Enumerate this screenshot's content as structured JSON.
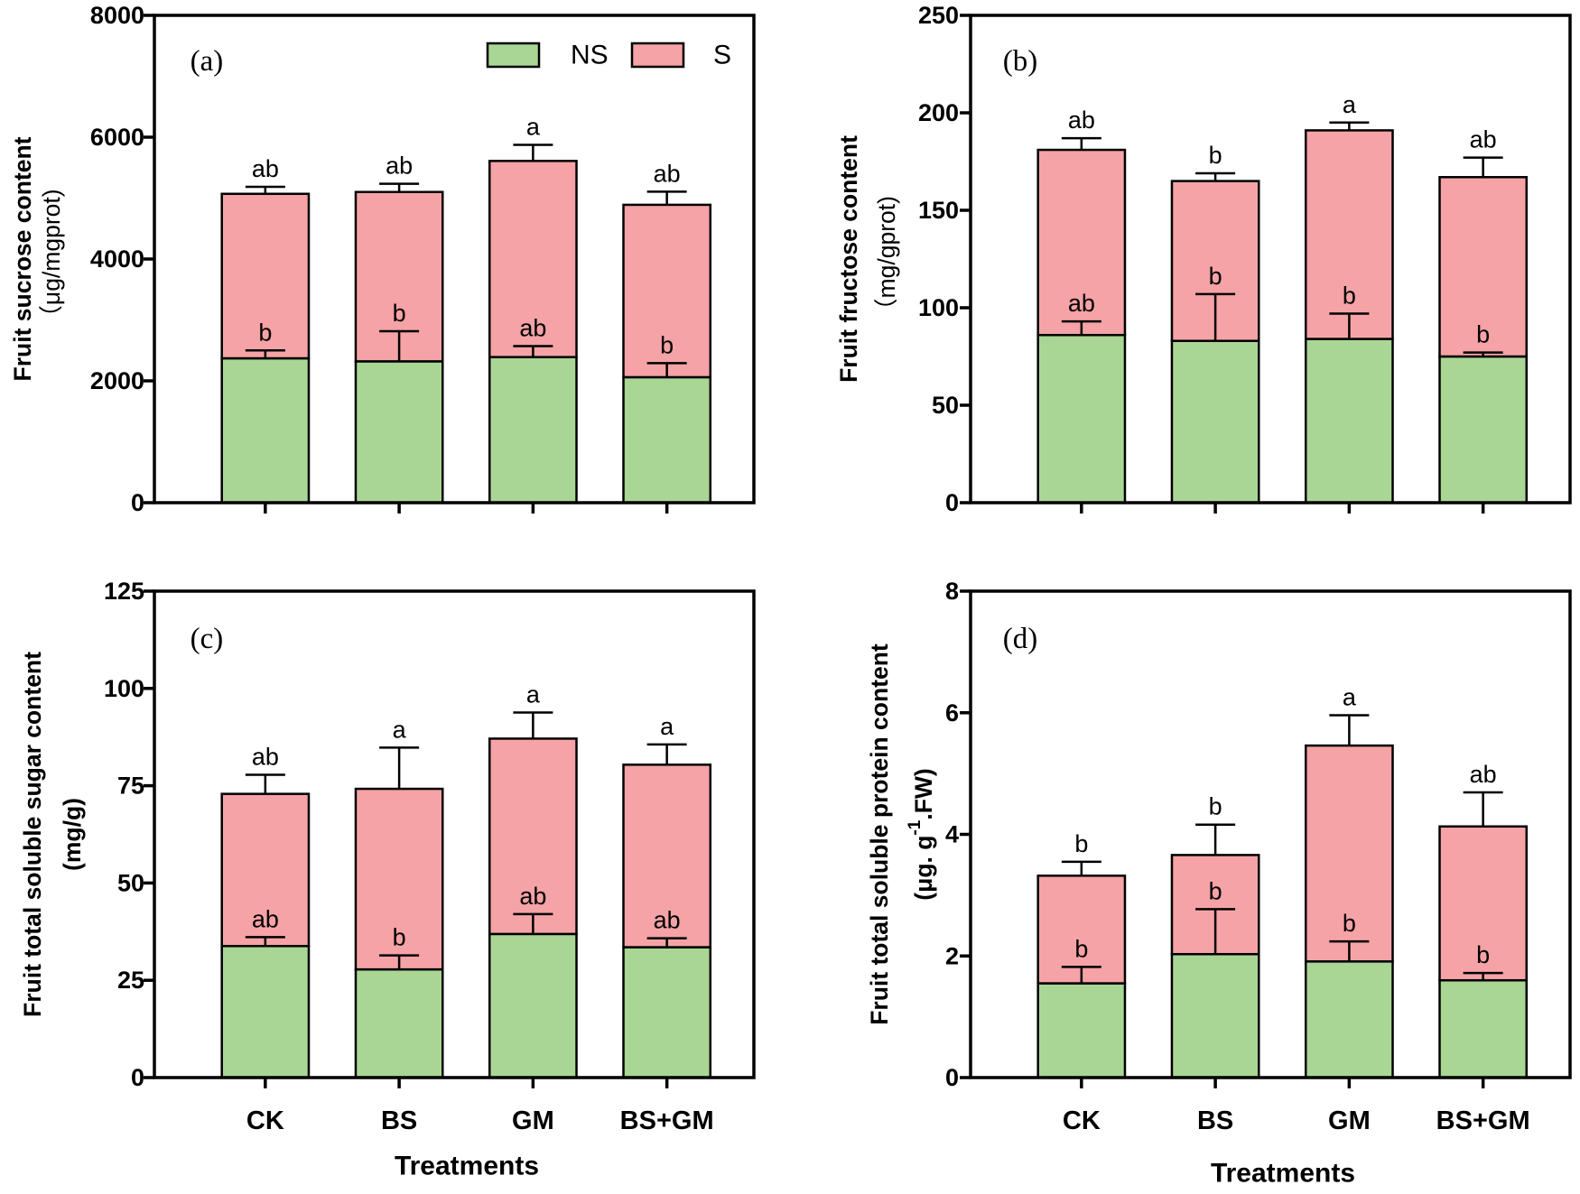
{
  "colors": {
    "NS": "#a9d694",
    "S": "#f5a3a6",
    "axis": "#000000"
  },
  "chart_data": [
    {
      "type": "bar",
      "stacked": true,
      "panel_label": "(a)",
      "categories": [
        "CK",
        "BS",
        "GM",
        "BS+GM"
      ],
      "series": [
        {
          "name": "NS",
          "values": [
            2370,
            2320,
            2390,
            2060
          ],
          "errors": [
            130,
            495,
            180,
            230
          ],
          "letters": [
            "b",
            "b",
            "ab",
            "b"
          ]
        },
        {
          "name": "S",
          "values": [
            2700,
            2780,
            3220,
            2830
          ],
          "errors": [
            115,
            135,
            265,
            215
          ],
          "letters": [
            "ab",
            "ab",
            "a",
            "ab"
          ]
        }
      ],
      "ylabel": {
        "line1": "Fruit sucrose content",
        "line2": "（μg/mgprot)"
      },
      "xlabel": "",
      "ylim": [
        0,
        8000
      ],
      "yticks": [
        0,
        2000,
        4000,
        6000,
        8000
      ],
      "legend": {
        "placement": "top-right",
        "entries": [
          {
            "label": "NS"
          },
          {
            "label": "S"
          }
        ]
      }
    },
    {
      "type": "bar",
      "stacked": true,
      "panel_label": "(b)",
      "categories": [
        "CK",
        "BS",
        "GM",
        "BS+GM"
      ],
      "series": [
        {
          "name": "NS",
          "values": [
            86,
            83,
            84,
            75
          ],
          "errors": [
            7,
            24,
            13,
            2
          ],
          "letters": [
            "ab",
            "b",
            "b",
            "b"
          ]
        },
        {
          "name": "S",
          "values": [
            95,
            82,
            107,
            92
          ],
          "errors": [
            6,
            4,
            4,
            10
          ],
          "letters": [
            "ab",
            "b",
            "a",
            "ab"
          ]
        }
      ],
      "ylabel": {
        "line1": "Fruit fructose content",
        "line2": "（mg/gprot)"
      },
      "xlabel": "",
      "ylim": [
        0,
        250
      ],
      "yticks": [
        0,
        50,
        100,
        150,
        200,
        250
      ]
    },
    {
      "type": "bar",
      "stacked": true,
      "panel_label": "(c)",
      "categories": [
        "CK",
        "BS",
        "GM",
        "BS+GM"
      ],
      "series": [
        {
          "name": "NS",
          "values": [
            33.8,
            27.8,
            36.9,
            33.5
          ],
          "errors": [
            2.3,
            3.6,
            5.1,
            2.3
          ],
          "letters": [
            "ab",
            "b",
            "ab",
            "ab"
          ]
        },
        {
          "name": "S",
          "values": [
            39.1,
            46.4,
            50.2,
            46.9
          ],
          "errors": [
            4.9,
            10.6,
            6.7,
            5.2
          ],
          "letters": [
            "ab",
            "a",
            "a",
            "a"
          ]
        }
      ],
      "ylabel": {
        "line1": "Fruit total soluble sugar content",
        "line2": "(mg/g)"
      },
      "xlabel": "Treatments",
      "ylim": [
        0,
        125
      ],
      "yticks": [
        0,
        25,
        50,
        75,
        100,
        125
      ]
    },
    {
      "type": "bar",
      "stacked": true,
      "panel_label": "(d)",
      "categories": [
        "CK",
        "BS",
        "GM",
        "BS+GM"
      ],
      "series": [
        {
          "name": "NS",
          "values": [
            1.55,
            2.03,
            1.91,
            1.6
          ],
          "errors": [
            0.27,
            0.74,
            0.33,
            0.12
          ],
          "letters": [
            "b",
            "b",
            "b",
            "b"
          ]
        },
        {
          "name": "S",
          "values": [
            1.77,
            1.63,
            3.55,
            2.53
          ],
          "errors": [
            0.23,
            0.5,
            0.5,
            0.56
          ],
          "letters": [
            "b",
            "b",
            "a",
            "ab"
          ]
        }
      ],
      "ylabel": {
        "line1": "Fruit total soluble protein content",
        "line2": {
          "prefix": "(μg. g",
          "sup": "-1",
          "suffix": ".FW)"
        }
      },
      "xlabel": "Treatments",
      "ylim": [
        0,
        8
      ],
      "yticks": [
        0,
        2,
        4,
        6,
        8
      ]
    }
  ]
}
